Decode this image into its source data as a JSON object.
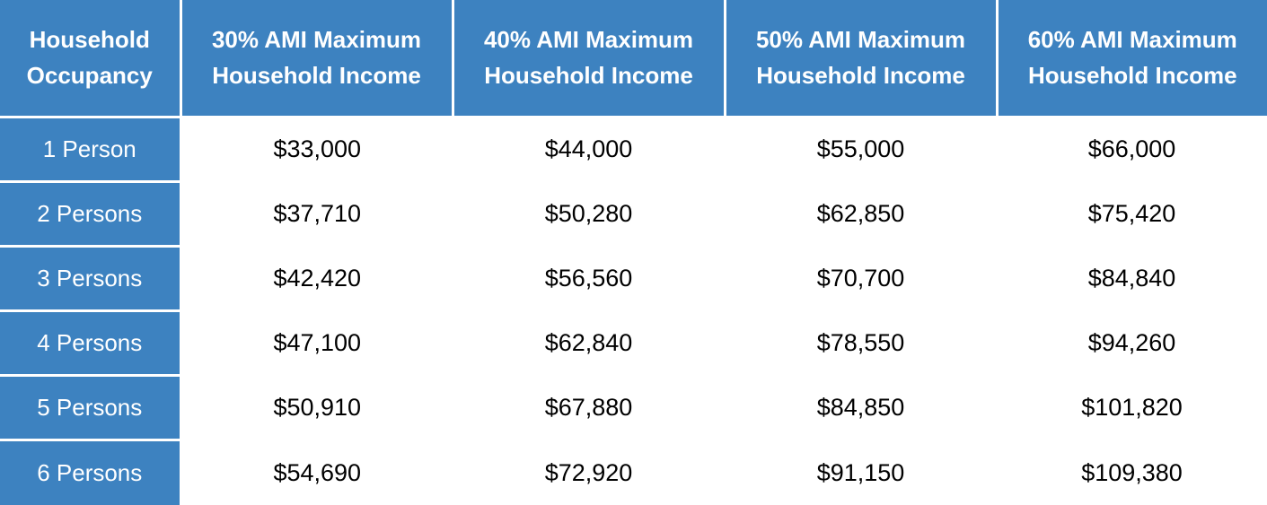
{
  "table": {
    "header": {
      "col0": [
        "Household",
        "Occupancy"
      ],
      "col1": [
        "30% AMI Maximum",
        "Household Income"
      ],
      "col2": [
        "40% AMI Maximum",
        "Household Income"
      ],
      "col3": [
        "50% AMI Maximum",
        "Household Income"
      ],
      "col4": [
        "60% AMI Maximum",
        "Household Income"
      ]
    },
    "rows": [
      {
        "label": "1 Person",
        "values": [
          "$33,000",
          "$44,000",
          "$55,000",
          "$66,000"
        ]
      },
      {
        "label": "2 Persons",
        "values": [
          "$37,710",
          "$50,280",
          "$62,850",
          "$75,420"
        ]
      },
      {
        "label": "3 Persons",
        "values": [
          "$42,420",
          "$56,560",
          "$70,700",
          "$84,840"
        ]
      },
      {
        "label": "4 Persons",
        "values": [
          "$47,100",
          "$62,840",
          "$78,550",
          "$94,260"
        ]
      },
      {
        "label": "5 Persons",
        "values": [
          "$50,910",
          "$67,880",
          "$84,850",
          "$101,820"
        ]
      },
      {
        "label": "6 Persons",
        "values": [
          "$54,690",
          "$72,920",
          "$91,150",
          "$109,380"
        ]
      }
    ]
  },
  "colors": {
    "header_bg": "#3d82c0",
    "header_text": "#ffffff",
    "cell_text": "#000000"
  }
}
